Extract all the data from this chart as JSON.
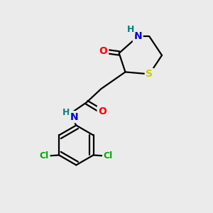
{
  "background_color": "#ebebeb",
  "atom_colors": {
    "O": "#ff0000",
    "N": "#0000cd",
    "S": "#cccc00",
    "Cl": "#00aa00",
    "H": "#008080",
    "C": "#000000"
  },
  "bond_color": "#000000",
  "bond_width": 1.6,
  "figsize": [
    3.0,
    3.0
  ],
  "dpi": 100
}
